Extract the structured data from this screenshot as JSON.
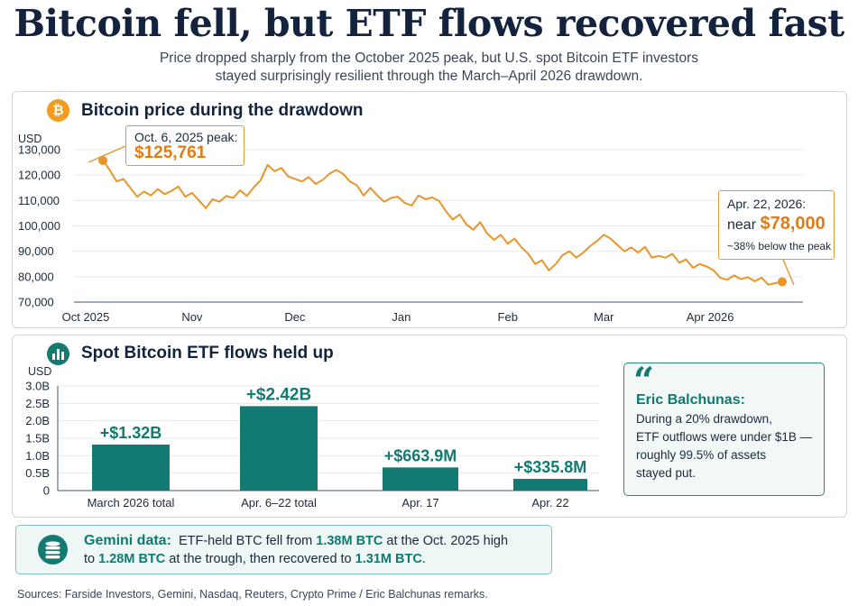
{
  "header": {
    "title": "Bitcoin fell, but ETF flows recovered fast",
    "subtitle_line1": "Price dropped sharply from the October 2025 peak, but U.S. spot Bitcoin ETF investors",
    "subtitle_line2": "stayed surprisingly resilient through the March–April 2026 drawdown."
  },
  "price_panel": {
    "icon": "bitcoin-icon",
    "icon_glyph": "₿",
    "title": "Bitcoin price during the drawdown",
    "peak_callout": {
      "line1": "Oct. 6, 2025 peak:",
      "value": "$125,761"
    },
    "end_callout": {
      "line1": "Apr. 22, 2026:",
      "prefix": "near",
      "value": "$78,000",
      "note": "~38% below the peak"
    }
  },
  "etf_panel": {
    "icon": "bar-chart-icon",
    "title": "Spot Bitcoin ETF flows held up"
  },
  "quote": {
    "mark": "“",
    "author": "Eric Balchunas:",
    "lines": [
      "During a 20% drawdown,",
      "ETF outflows were under $1B —",
      "roughly 99.5% of assets",
      "stayed put."
    ]
  },
  "gemini": {
    "icon": "coin-stack-icon",
    "label": "Gemini data:",
    "text1": "ETF-held BTC fell from",
    "v1": "1.38M BTC",
    "text2": "at the Oct. 2025 high",
    "text3": "to",
    "v2": "1.28M BTC",
    "text4": "at the trough, then recovered to",
    "v3": "1.31M BTC",
    "text5": "."
  },
  "sources": "Sources: Farside Investors, Gemini, Nasdaq, Reuters, Crypto Prime / Eric Balchunas remarks.",
  "colors": {
    "price_line": "#e8952a",
    "bars": "#127a70",
    "navy": "#13233d"
  },
  "chart_data": [
    {
      "type": "line",
      "ylabel": "USD",
      "ylim": [
        70000,
        130000
      ],
      "yticks": [
        "70,000",
        "80,000",
        "90,000",
        "100,000",
        "110,000",
        "120,000",
        "130,000"
      ],
      "xticks": [
        {
          "label": "Oct 2025",
          "date": "2025-10-01"
        },
        {
          "label": "Nov",
          "date": "2025-11-01"
        },
        {
          "label": "Dec",
          "date": "2025-12-01"
        },
        {
          "label": "Jan",
          "date": "2026-01-01"
        },
        {
          "label": "Feb",
          "date": "2026-02-01"
        },
        {
          "label": "Mar",
          "date": "2026-03-01"
        },
        {
          "label": "Apr 2026",
          "date": "2026-04-01"
        }
      ],
      "series": [
        {
          "points": [
            [
              "2025-10-06",
              125761
            ],
            [
              "2025-10-08",
              122000
            ],
            [
              "2025-10-10",
              117500
            ],
            [
              "2025-10-12",
              118500
            ],
            [
              "2025-10-14",
              115000
            ],
            [
              "2025-10-16",
              111500
            ],
            [
              "2025-10-18",
              113500
            ],
            [
              "2025-10-20",
              112000
            ],
            [
              "2025-10-22",
              114500
            ],
            [
              "2025-10-24",
              112500
            ],
            [
              "2025-10-26",
              113800
            ],
            [
              "2025-10-28",
              115500
            ],
            [
              "2025-10-30",
              111500
            ],
            [
              "2025-11-01",
              113000
            ],
            [
              "2025-11-03",
              110000
            ],
            [
              "2025-11-05",
              107000
            ],
            [
              "2025-11-07",
              110500
            ],
            [
              "2025-11-09",
              109500
            ],
            [
              "2025-11-11",
              111800
            ],
            [
              "2025-11-13",
              111000
            ],
            [
              "2025-11-15",
              114000
            ],
            [
              "2025-11-17",
              111800
            ],
            [
              "2025-11-19",
              115200
            ],
            [
              "2025-11-21",
              118000
            ],
            [
              "2025-11-23",
              124000
            ],
            [
              "2025-11-25",
              121500
            ],
            [
              "2025-11-27",
              122800
            ],
            [
              "2025-11-29",
              119500
            ],
            [
              "2025-12-01",
              118500
            ],
            [
              "2025-12-03",
              117500
            ],
            [
              "2025-12-05",
              119200
            ],
            [
              "2025-12-07",
              116500
            ],
            [
              "2025-12-09",
              118000
            ],
            [
              "2025-12-11",
              120500
            ],
            [
              "2025-12-13",
              122000
            ],
            [
              "2025-12-15",
              120500
            ],
            [
              "2025-12-17",
              117500
            ],
            [
              "2025-12-19",
              116000
            ],
            [
              "2025-12-21",
              112000
            ],
            [
              "2025-12-23",
              115000
            ],
            [
              "2025-12-25",
              112000
            ],
            [
              "2025-12-27",
              109500
            ],
            [
              "2025-12-29",
              111000
            ],
            [
              "2025-12-31",
              111500
            ],
            [
              "2026-01-02",
              109000
            ],
            [
              "2026-01-04",
              108000
            ],
            [
              "2026-01-06",
              112000
            ],
            [
              "2026-01-08",
              110500
            ],
            [
              "2026-01-10",
              111200
            ],
            [
              "2026-01-12",
              109800
            ],
            [
              "2026-01-14",
              105800
            ],
            [
              "2026-01-16",
              102500
            ],
            [
              "2026-01-18",
              104500
            ],
            [
              "2026-01-20",
              100500
            ],
            [
              "2026-01-22",
              98500
            ],
            [
              "2026-01-24",
              101500
            ],
            [
              "2026-01-26",
              97000
            ],
            [
              "2026-01-28",
              94500
            ],
            [
              "2026-01-30",
              96500
            ],
            [
              "2026-02-01",
              93000
            ],
            [
              "2026-02-03",
              95000
            ],
            [
              "2026-02-05",
              91500
            ],
            [
              "2026-02-07",
              89000
            ],
            [
              "2026-02-09",
              85000
            ],
            [
              "2026-02-11",
              86500
            ],
            [
              "2026-02-13",
              82500
            ],
            [
              "2026-02-15",
              85000
            ],
            [
              "2026-02-17",
              88500
            ],
            [
              "2026-02-19",
              90000
            ],
            [
              "2026-02-21",
              87500
            ],
            [
              "2026-02-23",
              89500
            ],
            [
              "2026-02-25",
              92000
            ],
            [
              "2026-02-27",
              94000
            ],
            [
              "2026-03-01",
              96500
            ],
            [
              "2026-03-03",
              95000
            ],
            [
              "2026-03-05",
              92500
            ],
            [
              "2026-03-07",
              90000
            ],
            [
              "2026-03-09",
              91500
            ],
            [
              "2026-03-11",
              89500
            ],
            [
              "2026-03-13",
              91800
            ],
            [
              "2026-03-15",
              87500
            ],
            [
              "2026-03-17",
              88200
            ],
            [
              "2026-03-19",
              87500
            ],
            [
              "2026-03-21",
              89000
            ],
            [
              "2026-03-23",
              85500
            ],
            [
              "2026-03-25",
              86800
            ],
            [
              "2026-03-27",
              83500
            ],
            [
              "2026-03-29",
              85000
            ],
            [
              "2026-03-31",
              84000
            ],
            [
              "2026-04-02",
              82500
            ],
            [
              "2026-04-04",
              79500
            ],
            [
              "2026-04-06",
              78800
            ],
            [
              "2026-04-08",
              80500
            ],
            [
              "2026-04-10",
              79000
            ],
            [
              "2026-04-12",
              79800
            ],
            [
              "2026-04-14",
              78200
            ],
            [
              "2026-04-16",
              79600
            ],
            [
              "2026-04-18",
              76800
            ],
            [
              "2026-04-20",
              77500
            ],
            [
              "2026-04-22",
              78000
            ]
          ]
        }
      ]
    },
    {
      "type": "bar",
      "ylabel": "USD",
      "ylim": [
        0,
        3.0
      ],
      "yticks": [
        "0",
        "0.5B",
        "1.0B",
        "1.5B",
        "2.0B",
        "2.5B",
        "3.0B"
      ],
      "categories": [
        "March 2026 total",
        "Apr. 6–22 total",
        "Apr. 17",
        "Apr. 22"
      ],
      "values": [
        1.32,
        2.42,
        0.6639,
        0.3358
      ],
      "data_labels": [
        "+$1.32B",
        "+$2.42B",
        "+$663.9M",
        "+$335.8M"
      ]
    }
  ]
}
